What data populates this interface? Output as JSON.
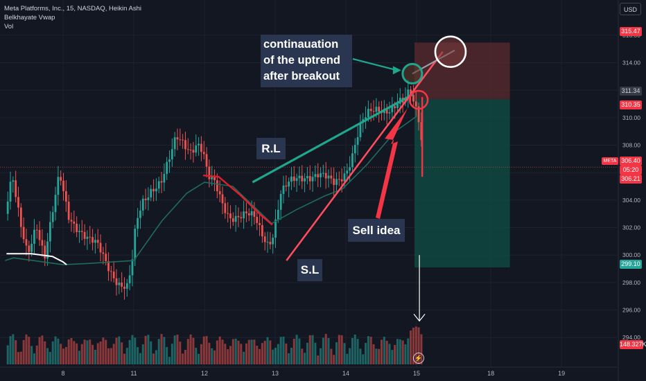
{
  "header": {
    "title_line": "Meta Platforms, Inc., 15, NASDAQ, Heikin Ashi",
    "indicator_1": "Belkhayate Vwap",
    "indicator_2": "Vol",
    "currency_button": "USD",
    "symbol_tag": "META"
  },
  "annotations": {
    "continuation": [
      "continauation",
      "of the uptrend",
      "after breakout"
    ],
    "resistance_line": "R.L",
    "sell_idea": "Sell idea",
    "stop_loss": "S.L"
  },
  "price_tags": {
    "target_top": "315.47",
    "current_grey": "311.34",
    "entry_red": "310.35",
    "last_price": "306.40",
    "countdown": "05:20",
    "price_red_2": "306.21",
    "stop_green": "299.10",
    "volume": "148.327K"
  },
  "colors": {
    "background": "#131722",
    "bull": "#26a69a",
    "bear": "#ef5350",
    "annotation_green": "#1fa78e",
    "annotation_red": "#f23645",
    "vwap_red": "#e11d2a",
    "vwap_white": "#ffffff",
    "vwap_green": "#1f6b5c",
    "target_zone": "#5b2a2f",
    "stop_zone": "#0f4b43",
    "annotation_box": "#2a3650"
  },
  "chart_data": {
    "type": "candlestick",
    "subtype": "heikin-ashi",
    "timeframe": "15",
    "y_axis": {
      "range": [
        293.0,
        316.6
      ],
      "ticks": [
        "316.00",
        "314.00",
        "312.00",
        "310.00",
        "308.00",
        "306.00",
        "304.00",
        "302.00",
        "300.00",
        "298.00",
        "296.00",
        "294.00"
      ]
    },
    "x_axis": {
      "ticks": [
        {
          "label": "8",
          "pos": 0.0
        },
        {
          "label": "11",
          "pos": 1.0
        },
        {
          "label": "12",
          "pos": 2.0
        },
        {
          "label": "13",
          "pos": 3.0
        },
        {
          "label": "14",
          "pos": 4.0
        },
        {
          "label": "15",
          "pos": 5.0
        },
        {
          "label": "18",
          "pos": 6.05
        },
        {
          "label": "19",
          "pos": 7.05
        }
      ]
    },
    "price_anchors": [
      [
        -0.82,
        303.0
      ],
      [
        -0.72,
        305.5
      ],
      [
        -0.6,
        302.0
      ],
      [
        -0.5,
        300.2
      ],
      [
        -0.38,
        302.5
      ],
      [
        -0.26,
        299.8
      ],
      [
        -0.15,
        302.8
      ],
      [
        -0.05,
        305.8
      ],
      [
        0.08,
        303.0
      ],
      [
        0.22,
        302.0
      ],
      [
        0.35,
        301.0
      ],
      [
        0.5,
        300.5
      ],
      [
        0.62,
        299.5
      ],
      [
        0.72,
        298.6
      ],
      [
        0.82,
        297.8
      ],
      [
        0.92,
        297.5
      ],
      [
        0.98,
        299.5
      ],
      [
        1.03,
        302.0
      ],
      [
        1.12,
        303.8
      ],
      [
        1.25,
        305.0
      ],
      [
        1.4,
        305.5
      ],
      [
        1.52,
        307.0
      ],
      [
        1.6,
        308.4
      ],
      [
        1.7,
        308.2
      ],
      [
        1.8,
        307.8
      ],
      [
        1.9,
        308.3
      ],
      [
        1.98,
        307.5
      ],
      [
        2.05,
        305.5
      ],
      [
        2.15,
        305.0
      ],
      [
        2.25,
        303.8
      ],
      [
        2.35,
        303.0
      ],
      [
        2.48,
        302.9
      ],
      [
        2.6,
        302.8
      ],
      [
        2.72,
        302.5
      ],
      [
        2.82,
        301.5
      ],
      [
        2.9,
        301.0
      ],
      [
        2.96,
        301.5
      ],
      [
        3.02,
        303.0
      ],
      [
        3.08,
        304.5
      ],
      [
        3.18,
        305.0
      ],
      [
        3.3,
        305.4
      ],
      [
        3.45,
        305.9
      ],
      [
        3.6,
        306.0
      ],
      [
        3.72,
        305.5
      ],
      [
        3.82,
        305.0
      ],
      [
        3.92,
        305.5
      ],
      [
        4.0,
        306.2
      ],
      [
        4.08,
        307.3
      ],
      [
        4.15,
        308.6
      ],
      [
        4.22,
        309.6
      ],
      [
        4.32,
        310.1
      ],
      [
        4.45,
        310.5
      ],
      [
        4.55,
        310.7
      ],
      [
        4.65,
        310.9
      ],
      [
        4.75,
        311.2
      ],
      [
        4.82,
        311.0
      ],
      [
        4.88,
        311.5
      ],
      [
        4.9,
        311.8
      ],
      [
        4.95,
        311.0
      ],
      [
        5.02,
        310.2
      ],
      [
        5.06,
        309.0
      ],
      [
        5.1,
        306.4
      ]
    ],
    "vwap": {
      "red": [
        [
          1.98,
          305.8
        ],
        [
          2.2,
          305.7
        ],
        [
          2.5,
          304.4
        ],
        [
          2.8,
          302.9
        ],
        [
          2.96,
          302.2
        ]
      ],
      "white": [
        [
          -0.8,
          300.1
        ],
        [
          -0.45,
          300.1
        ],
        [
          -0.15,
          299.9
        ],
        [
          0.0,
          299.5
        ],
        [
          0.05,
          299.3
        ]
      ],
      "green": [
        [
          -0.82,
          299.6
        ],
        [
          -0.7,
          299.8
        ],
        [
          0.0,
          299.3
        ],
        [
          0.4,
          299.4
        ],
        [
          1.0,
          299.6
        ],
        [
          1.4,
          302.5
        ],
        [
          1.75,
          304.5
        ],
        [
          2.0,
          305.3
        ],
        [
          2.4,
          305.0
        ],
        [
          2.95,
          302.3
        ],
        [
          3.3,
          303.3
        ],
        [
          3.7,
          304.3
        ],
        [
          3.95,
          304.8
        ],
        [
          4.3,
          306.6
        ],
        [
          4.7,
          309.0
        ],
        [
          5.0,
          310.1
        ]
      ]
    },
    "trendlines": {
      "resistance": [
        [
          2.68,
          305.3
        ],
        [
          4.95,
          311.7
        ]
      ],
      "support": [
        [
          3.16,
          299.6
        ],
        [
          5.37,
          314.8
        ]
      ]
    },
    "circles": [
      {
        "x": 4.94,
        "y": 313.2,
        "color": "green"
      },
      {
        "x": 5.03,
        "y": 311.3,
        "color": "red"
      },
      {
        "x": 5.48,
        "y": 314.8,
        "color": "white"
      }
    ],
    "position": {
      "x_from": 5.0,
      "x_to": 6.32,
      "entry": 311.34,
      "target_top": 315.47,
      "stop_bottom": 299.1,
      "last": 306.4
    },
    "volume_level": "148.327K"
  }
}
